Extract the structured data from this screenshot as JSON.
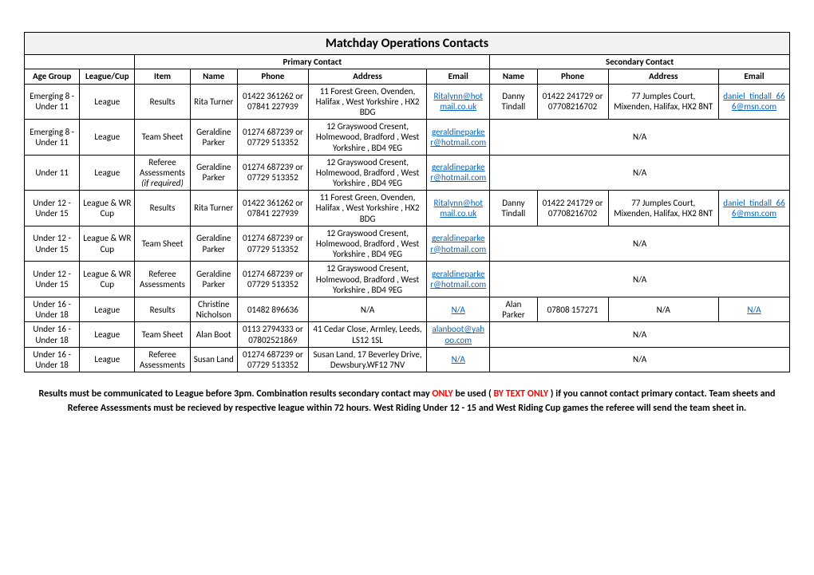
{
  "title": "Matchday Operations Contacts",
  "sections": {
    "primary": "Primary Contact",
    "secondary": "Secondary Contact"
  },
  "headers": {
    "age": "Age Group",
    "league": "League/Cup",
    "item": "Item",
    "name": "Name",
    "phone": "Phone",
    "address": "Address",
    "email": "Email"
  },
  "rows": [
    {
      "age": "Emerging 8 - Under 11",
      "league": "League",
      "item": "Results",
      "p_name": "Rita Turner",
      "p_phone": "01422 361262 or 07841 227939",
      "p_address": "11 Forest Green, Ovenden, Halifax , West Yorkshire , HX2 BDG",
      "p_email": "Ritalynn@hotmail.co.uk",
      "s_name": "Danny Tindall",
      "s_phone": "01422 241729 or 07708216702",
      "s_address": "77 Jumples Court, Mixenden, Halifax, HX2 8NT",
      "s_email": "daniel_tindall_666@msn.com",
      "s_na": false
    },
    {
      "age": "Emerging 8 - Under 11",
      "league": "League",
      "item": "Team Sheet",
      "p_name": "Geraldine Parker",
      "p_phone": "01274 687239 or 07729 513352",
      "p_address": "12 Grayswood Cresent, Holmewood, Bradford , West Yorkshire , BD4 9EG",
      "p_email": "geraldineparker@hotmail.com",
      "s_na": true
    },
    {
      "age": "Under 11",
      "league": "League",
      "item": "Referee Assessments",
      "item_note": "(if required)",
      "p_name": "Geraldine Parker",
      "p_phone": "01274 687239 or 07729 513352",
      "p_address": "12 Grayswood Cresent, Holmewood, Bradford , West Yorkshire , BD4 9EG",
      "p_email": "geraldineparker@hotmail.com",
      "s_na": true
    },
    {
      "age": "Under 12 - Under 15",
      "league": "League & WR Cup",
      "item": "Results",
      "p_name": "Rita Turner",
      "p_phone": "01422 361262 or 07841 227939",
      "p_address": "11 Forest Green, Ovenden, Halifax , West Yorkshire , HX2 BDG",
      "p_email": "Ritalynn@hotmail.co.uk",
      "s_name": "Danny Tindall",
      "s_phone": "01422 241729 or 07708216702",
      "s_address": "77 Jumples Court, Mixenden, Halifax, HX2 8NT",
      "s_email": "daniel_tindall_666@msn.com",
      "s_na": false
    },
    {
      "age": "Under 12 - Under 15",
      "league": "League & WR Cup",
      "item": "Team Sheet",
      "p_name": "Geraldine Parker",
      "p_phone": "01274 687239 or 07729 513352",
      "p_address": "12 Grayswood Cresent, Holmewood, Bradford , West Yorkshire , BD4 9EG",
      "p_email": "geraldineparker@hotmail.com",
      "s_na": true
    },
    {
      "age": "Under 12 - Under 15",
      "league": "League & WR Cup",
      "item": "Referee Assessments",
      "p_name": "Geraldine Parker",
      "p_phone": "01274 687239 or 07729 513352",
      "p_address": "12 Grayswood Cresent, Holmewood, Bradford , West Yorkshire , BD4 9EG",
      "p_email": "geraldineparker@hotmail.com",
      "s_na": true
    },
    {
      "age": "Under 16 - Under 18",
      "league": "League",
      "item": "Results",
      "p_name": "Christine Nicholson",
      "p_phone": "01482 896636",
      "p_address": "N/A",
      "p_email": "N/A",
      "p_email_link": true,
      "s_name": "Alan Parker",
      "s_phone": "07808 157271",
      "s_address": "N/A",
      "s_email": "N/A",
      "s_email_link": true,
      "s_na": false
    },
    {
      "age": "Under 16 - Under 18",
      "league": "League",
      "item": "Team Sheet",
      "p_name": "Alan Boot",
      "p_phone": "0113 2794333 or 07802521869",
      "p_address": "41 Cedar Close, Armley, Leeds, LS12 1SL",
      "p_email": "alanboot@yahoo.com",
      "s_na": true
    },
    {
      "age": "Under 16 - Under 18",
      "league": "League",
      "item": "Referee Assessments",
      "p_name": "Susan Land",
      "p_phone": "01274 687239 or 07729 513352",
      "p_address": "Susan Land, 17 Beverley Drive, Dewsbury.WF12 7NV",
      "p_email": "N/A",
      "p_email_link": true,
      "s_na": true
    }
  ],
  "footer": {
    "pre": "Results must be communicated to League before 3pm. Combination results secondary contact may ",
    "only": "ONLY",
    "mid": " be used (",
    "bytext": "BY TEXT ONLY",
    "post": ") if you cannot contact primary contact. Team sheets and Referee Assessments must be recieved by respective league within 72 hours. West Riding Under 12 - 15 and West Riding Cup games the referee will send the team sheet in."
  },
  "na_label": "N/A"
}
